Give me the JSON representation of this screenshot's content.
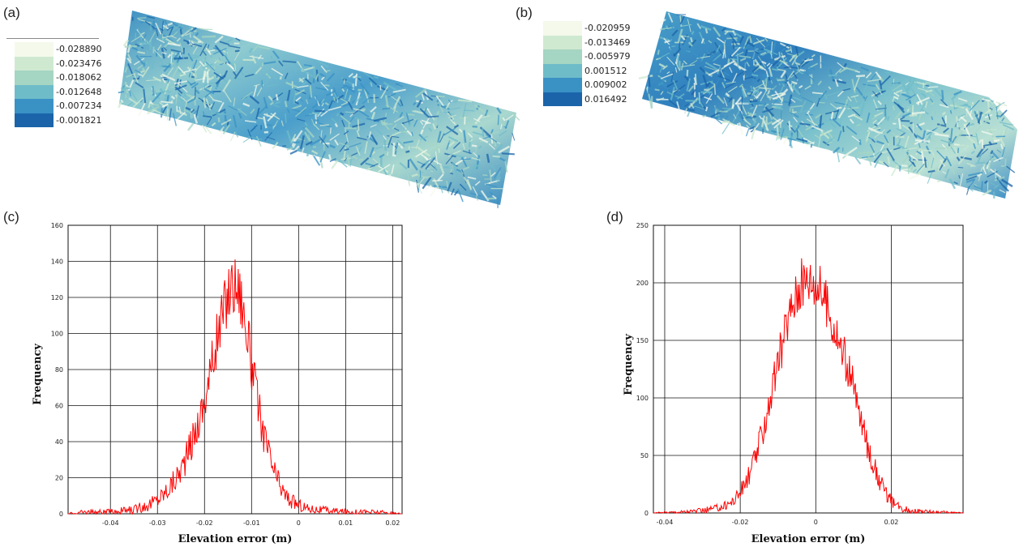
{
  "panels": {
    "a": {
      "label": "(a)",
      "legend": [
        "-0.028890",
        "-0.023476",
        "-0.018062",
        "-0.012648",
        "-0.007234",
        "-0.001821"
      ]
    },
    "b": {
      "label": "(b)",
      "legend": [
        "-0.020959",
        "-0.013469",
        "-0.005979",
        "0.001512",
        "0.009002",
        "0.016492"
      ]
    },
    "c": {
      "label": "(c)"
    },
    "d": {
      "label": "(d)"
    }
  },
  "colors": {
    "legend_ramp": [
      "#f4f9ec",
      "#cfe9d0",
      "#a5d5c3",
      "#6fbcc9",
      "#3a91c4",
      "#1b64aa"
    ],
    "series": "#ff0000",
    "grid": "#111111"
  },
  "chart_data": [
    {
      "type": "line",
      "panel": "(c)",
      "xlabel": "Elevation error (m)",
      "ylabel": "Frequency",
      "xlim": [
        -0.049,
        0.022
      ],
      "ylim": [
        0,
        160
      ],
      "xticks": [
        -0.04,
        -0.03,
        -0.02,
        -0.01,
        0,
        0.01,
        0.02
      ],
      "xtick_labels": [
        "-0.04",
        "-0.03",
        "-0.02",
        "-0.01",
        "0",
        "0.01",
        "0.02"
      ],
      "yticks": [
        0,
        20,
        40,
        60,
        80,
        100,
        120,
        140,
        160
      ],
      "ytick_labels": [
        "0",
        "20",
        "40",
        "60",
        "80",
        "100",
        "120",
        "140",
        "160"
      ],
      "grid": true,
      "series": [
        {
          "x": [
            -0.049,
            -0.045,
            -0.04,
            -0.036,
            -0.034,
            -0.032,
            -0.03,
            -0.028,
            -0.026,
            -0.024,
            -0.022,
            -0.02,
            -0.019,
            -0.018,
            -0.017,
            -0.016,
            -0.015,
            -0.014,
            -0.013,
            -0.012,
            -0.011,
            -0.01,
            -0.009,
            -0.008,
            -0.007,
            -0.006,
            -0.005,
            -0.004,
            -0.003,
            -0.002,
            0,
            0.002,
            0.005,
            0.01,
            0.015,
            0.022
          ],
          "values": [
            0,
            1,
            1,
            2,
            3,
            5,
            8,
            13,
            20,
            30,
            45,
            62,
            75,
            88,
            100,
            112,
            122,
            128,
            126,
            118,
            100,
            82,
            66,
            52,
            40,
            30,
            22,
            16,
            11,
            8,
            5,
            3,
            2,
            1,
            1,
            0
          ]
        }
      ]
    },
    {
      "type": "line",
      "panel": "(d)",
      "xlabel": "Elevation error (m)",
      "ylabel": "Frequency",
      "xlim": [
        -0.043,
        0.039
      ],
      "ylim": [
        0,
        250
      ],
      "xticks": [
        -0.04,
        -0.02,
        0,
        0.02
      ],
      "xtick_labels": [
        "-0.04",
        "-0.02",
        "0",
        "0.02"
      ],
      "yticks": [
        0,
        50,
        100,
        150,
        200,
        250
      ],
      "ytick_labels": [
        "0",
        "50",
        "100",
        "150",
        "200",
        "250"
      ],
      "grid": true,
      "series": [
        {
          "x": [
            -0.043,
            -0.035,
            -0.03,
            -0.025,
            -0.022,
            -0.02,
            -0.018,
            -0.016,
            -0.014,
            -0.012,
            -0.01,
            -0.008,
            -0.006,
            -0.004,
            -0.002,
            0,
            0.002,
            0.004,
            0.006,
            0.008,
            0.01,
            0.012,
            0.014,
            0.016,
            0.018,
            0.02,
            0.022,
            0.025,
            0.03,
            0.039
          ],
          "values": [
            0,
            1,
            2,
            5,
            10,
            18,
            30,
            48,
            72,
            100,
            130,
            160,
            185,
            198,
            205,
            200,
            190,
            170,
            150,
            132,
            108,
            80,
            55,
            35,
            20,
            10,
            5,
            2,
            1,
            0
          ]
        }
      ]
    }
  ]
}
